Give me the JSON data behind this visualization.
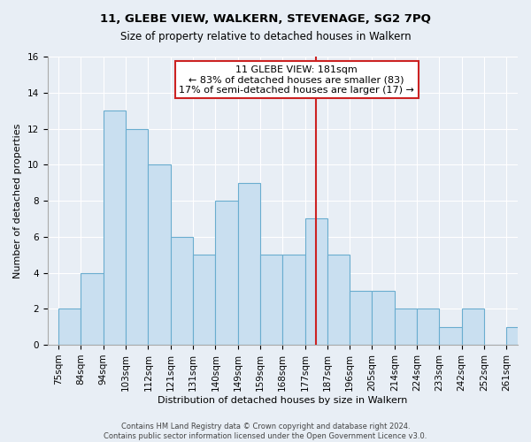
{
  "title": "11, GLEBE VIEW, WALKERN, STEVENAGE, SG2 7PQ",
  "subtitle": "Size of property relative to detached houses in Walkern",
  "xlabel": "Distribution of detached houses by size in Walkern",
  "ylabel": "Number of detached properties",
  "categories": [
    "75sqm",
    "84sqm",
    "94sqm",
    "103sqm",
    "112sqm",
    "121sqm",
    "131sqm",
    "140sqm",
    "149sqm",
    "159sqm",
    "168sqm",
    "177sqm",
    "187sqm",
    "196sqm",
    "205sqm",
    "214sqm",
    "224sqm",
    "233sqm",
    "242sqm",
    "252sqm",
    "261sqm"
  ],
  "values": [
    2,
    4,
    13,
    12,
    10,
    6,
    5,
    8,
    9,
    5,
    5,
    7,
    5,
    3,
    3,
    2,
    2,
    1,
    2,
    0,
    1
  ],
  "bar_color": "#c9dff0",
  "bar_edge_color": "#6aadcf",
  "annotation_label": "11 GLEBE VIEW: 181sqm",
  "annotation_line1": "← 83% of detached houses are smaller (83)",
  "annotation_line2": "17% of semi-detached houses are larger (17) →",
  "annotation_box_facecolor": "#ffffff",
  "annotation_box_edgecolor": "#cc2222",
  "vline_color": "#cc2222",
  "ylim": [
    0,
    16
  ],
  "yticks": [
    0,
    2,
    4,
    6,
    8,
    10,
    12,
    14,
    16
  ],
  "footer1": "Contains HM Land Registry data © Crown copyright and database right 2024.",
  "footer2": "Contains public sector information licensed under the Open Government Licence v3.0.",
  "bg_color": "#e8eef5",
  "plot_bg_color": "#e8eef5",
  "grid_color": "#ffffff",
  "title_fontsize": 9.5,
  "subtitle_fontsize": 8.5,
  "axis_label_fontsize": 8,
  "tick_fontsize": 7.5,
  "annotation_fontsize": 8,
  "footer_fontsize": 6
}
